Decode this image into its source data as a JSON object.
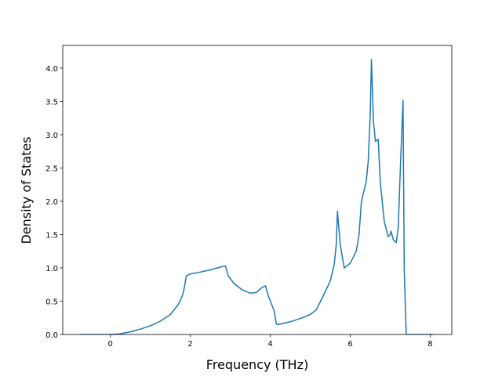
{
  "chart_data": {
    "type": "line",
    "xlabel": "Frequency (THz)",
    "ylabel": "Density of States",
    "x": [
      -0.75,
      0,
      0.25,
      0.5,
      0.75,
      1.0,
      1.25,
      1.5,
      1.7,
      1.8,
      1.85,
      1.9,
      2.0,
      2.2,
      2.5,
      2.8,
      2.88,
      2.95,
      3.1,
      3.3,
      3.5,
      3.65,
      3.8,
      3.88,
      3.95,
      4.1,
      4.15,
      4.2,
      4.5,
      4.8,
      5.0,
      5.15,
      5.3,
      5.5,
      5.6,
      5.65,
      5.68,
      5.75,
      5.85,
      6.0,
      6.15,
      6.22,
      6.28,
      6.4,
      6.45,
      6.5,
      6.53,
      6.58,
      6.63,
      6.7,
      6.75,
      6.85,
      6.95,
      7.0,
      7.02,
      7.08,
      7.15,
      7.2,
      7.26,
      7.32,
      7.35,
      7.4,
      7.8,
      8.1
    ],
    "series": [
      {
        "color": "#1f77b4",
        "values": [
          0,
          0,
          0.01,
          0.04,
          0.08,
          0.13,
          0.2,
          0.3,
          0.45,
          0.58,
          0.7,
          0.88,
          0.91,
          0.93,
          0.97,
          1.02,
          1.03,
          0.88,
          0.76,
          0.67,
          0.62,
          0.63,
          0.71,
          0.73,
          0.58,
          0.35,
          0.16,
          0.15,
          0.19,
          0.25,
          0.3,
          0.37,
          0.55,
          0.8,
          1.05,
          1.35,
          1.85,
          1.35,
          1.0,
          1.07,
          1.25,
          1.5,
          2.0,
          2.3,
          2.6,
          3.3,
          4.13,
          3.2,
          2.9,
          2.93,
          2.3,
          1.7,
          1.47,
          1.5,
          1.55,
          1.42,
          1.38,
          1.6,
          2.6,
          3.52,
          1.0,
          0,
          0,
          0
        ]
      }
    ],
    "xlim": [
      -1.19,
      8.54
    ],
    "xticks": [
      0,
      2,
      4,
      6,
      8
    ],
    "ylim": [
      0,
      4.34
    ],
    "yticks": [
      {
        "value": 0,
        "label": "0.0"
      },
      {
        "value": 0.5,
        "label": "0.5"
      },
      {
        "value": 1,
        "label": "1.0"
      },
      {
        "value": 1.5,
        "label": "1.5"
      },
      {
        "value": 2,
        "label": "2.0"
      },
      {
        "value": 2.5,
        "label": "2.5"
      },
      {
        "value": 3,
        "label": "3.0"
      },
      {
        "value": 3.5,
        "label": "3.5"
      },
      {
        "value": 4,
        "label": "4.0"
      }
    ]
  }
}
